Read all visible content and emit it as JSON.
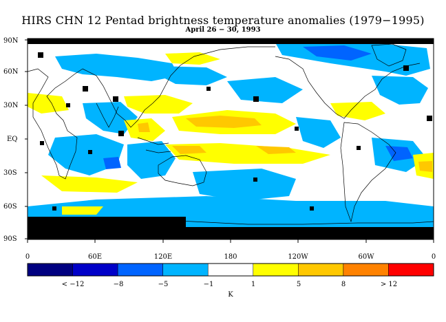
{
  "title": "HIRS CHN 12 Pentad brightness temperature anomalies (1979−1995)",
  "subtitle": "April 26 − 30, 1993",
  "map": {
    "lat_labels": [
      "90N",
      "60N",
      "30N",
      "EQ",
      "30S",
      "60S",
      "90S"
    ],
    "lon_labels": [
      "0",
      "60E",
      "120E",
      "180",
      "120W",
      "60W",
      "0"
    ]
  },
  "legend": {
    "colors": [
      "#000080",
      "#0000c8",
      "#0064ff",
      "#00b4ff",
      "#ffffff",
      "#ffff00",
      "#ffc800",
      "#ff8200",
      "#ff0000"
    ],
    "labels": [
      "< −12",
      "−8",
      "−5",
      "−1",
      "1",
      "5",
      "8",
      "> 12"
    ],
    "unit": "K"
  }
}
